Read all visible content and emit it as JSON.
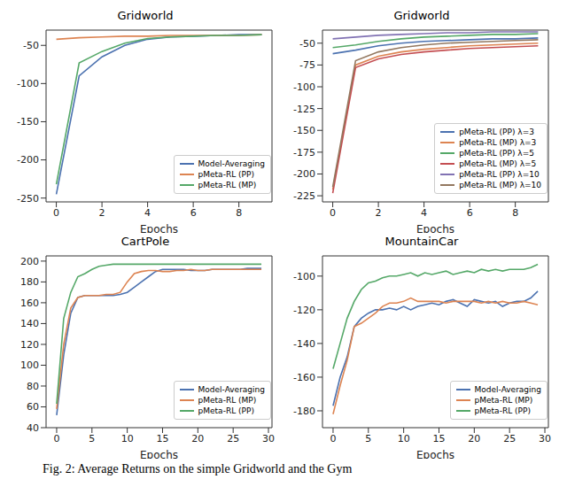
{
  "caption": "Fig. 2: Average Returns on the simple Gridworld and the Gym",
  "chart_data": [
    {
      "type": "line",
      "title": "Gridworld",
      "x_label": "Epochs",
      "x": [
        0,
        1,
        2,
        3,
        4,
        5,
        6,
        7,
        8,
        9
      ],
      "xlim": [
        -0.45,
        9.45
      ],
      "xticks": [
        0,
        2,
        4,
        6,
        8
      ],
      "ylim": [
        -255,
        -30
      ],
      "yticks": [
        -250,
        -200,
        -150,
        -100,
        -50
      ],
      "grid": false,
      "legend": "lower right",
      "series": [
        {
          "name": "Model-Averaging",
          "color": "#4c72b0",
          "values": [
            -245,
            -90,
            -65,
            -50,
            -42,
            -39,
            -38,
            -37,
            -36,
            -36
          ]
        },
        {
          "name": "pMeta-RL (PP)",
          "color": "#dd8452",
          "values": [
            -42,
            -40,
            -39,
            -38,
            -38,
            -37,
            -37,
            -37,
            -37,
            -36
          ]
        },
        {
          "name": "pMeta-RL (MP)",
          "color": "#55a868",
          "values": [
            -232,
            -73,
            -58,
            -47,
            -41,
            -39,
            -38,
            -37,
            -37,
            -36
          ]
        }
      ]
    },
    {
      "type": "line",
      "title": "Gridworld",
      "x_label": "Epochs",
      "x": [
        0,
        1,
        2,
        3,
        4,
        5,
        6,
        7,
        8,
        9
      ],
      "xlim": [
        -0.45,
        9.45
      ],
      "xticks": [
        0,
        2,
        4,
        6,
        8
      ],
      "ylim": [
        -232,
        -35
      ],
      "yticks": [
        -225,
        -200,
        -175,
        -150,
        -125,
        -100,
        -75,
        -50
      ],
      "grid": false,
      "legend": "lower right",
      "series": [
        {
          "name": "pMeta-RL (PP) λ=3",
          "color": "#4c72b0",
          "values": [
            -62,
            -58,
            -53,
            -50,
            -48,
            -47,
            -46,
            -45,
            -45,
            -44
          ]
        },
        {
          "name": "pMeta-RL (MP) λ=3",
          "color": "#dd8452",
          "values": [
            -218,
            -75,
            -65,
            -60,
            -57,
            -55,
            -53,
            -52,
            -51,
            -50
          ]
        },
        {
          "name": "pMeta-RL (PP) λ=5",
          "color": "#55a868",
          "values": [
            -55,
            -52,
            -48,
            -45,
            -43,
            -42,
            -41,
            -40,
            -40,
            -39
          ]
        },
        {
          "name": "pMeta-RL (MP) λ=5",
          "color": "#c44e52",
          "values": [
            -222,
            -78,
            -68,
            -63,
            -60,
            -58,
            -56,
            -55,
            -54,
            -53
          ]
        },
        {
          "name": "pMeta-RL (PP) λ=10",
          "color": "#8172b3",
          "values": [
            -45,
            -43,
            -41,
            -40,
            -39,
            -38,
            -38,
            -37,
            -37,
            -37
          ]
        },
        {
          "name": "pMeta-RL (MP) λ=10",
          "color": "#937860",
          "values": [
            -215,
            -70,
            -60,
            -55,
            -52,
            -50,
            -49,
            -48,
            -47,
            -46
          ]
        }
      ]
    },
    {
      "type": "line",
      "title": "CartPole",
      "x_label": "Epochs",
      "x": [
        0,
        1,
        2,
        3,
        4,
        5,
        6,
        7,
        8,
        9,
        10,
        11,
        12,
        13,
        14,
        15,
        16,
        17,
        18,
        19,
        20,
        21,
        22,
        23,
        24,
        25,
        26,
        27,
        28,
        29
      ],
      "xlim": [
        -1.5,
        30.5
      ],
      "xticks": [
        0,
        5,
        10,
        15,
        20,
        25,
        30
      ],
      "ylim": [
        40,
        205
      ],
      "yticks": [
        40,
        60,
        80,
        100,
        120,
        140,
        160,
        180,
        200
      ],
      "grid": false,
      "legend": "lower right",
      "series": [
        {
          "name": "Model-Averaging",
          "color": "#4c72b0",
          "values": [
            52,
            110,
            150,
            165,
            167,
            167,
            167,
            167,
            167,
            168,
            170,
            175,
            180,
            185,
            190,
            192,
            192,
            192,
            192,
            191,
            191,
            191,
            192,
            192,
            192,
            192,
            192,
            193,
            193,
            193
          ]
        },
        {
          "name": "pMeta-RL (MP)",
          "color": "#dd8452",
          "values": [
            58,
            120,
            155,
            165,
            167,
            167,
            167,
            168,
            168,
            170,
            180,
            188,
            190,
            191,
            191,
            190,
            190,
            191,
            191,
            192,
            191,
            191,
            192,
            192,
            192,
            192,
            192,
            192,
            192,
            192
          ]
        },
        {
          "name": "pMeta-RL (PP)",
          "color": "#55a868",
          "values": [
            63,
            145,
            170,
            185,
            188,
            192,
            195,
            196,
            197,
            197,
            197,
            197,
            197,
            197,
            197,
            197,
            197,
            197,
            197,
            197,
            197,
            197,
            197,
            197,
            197,
            197,
            197,
            197,
            197,
            197
          ]
        }
      ]
    },
    {
      "type": "line",
      "title": "MountainCar",
      "x_label": "Epochs",
      "x": [
        0,
        1,
        2,
        3,
        4,
        5,
        6,
        7,
        8,
        9,
        10,
        11,
        12,
        13,
        14,
        15,
        16,
        17,
        18,
        19,
        20,
        21,
        22,
        23,
        24,
        25,
        26,
        27,
        28,
        29
      ],
      "xlim": [
        -1.5,
        30.5
      ],
      "xticks": [
        0,
        5,
        10,
        15,
        20,
        25,
        30
      ],
      "ylim": [
        -190,
        -88
      ],
      "yticks": [
        -180,
        -160,
        -140,
        -120,
        -100
      ],
      "grid": false,
      "legend": "lower right",
      "series": [
        {
          "name": "Model-Averaging",
          "color": "#4c72b0",
          "values": [
            -177,
            -160,
            -148,
            -130,
            -125,
            -122,
            -120,
            -120,
            -119,
            -120,
            -118,
            -120,
            -118,
            -117,
            -116,
            -117,
            -115,
            -114,
            -116,
            -118,
            -114,
            -115,
            -116,
            -115,
            -118,
            -116,
            -115,
            -115,
            -113,
            -109
          ]
        },
        {
          "name": "pMeta-RL (MP)",
          "color": "#dd8452",
          "values": [
            -182,
            -165,
            -150,
            -130,
            -128,
            -125,
            -122,
            -118,
            -116,
            -116,
            -115,
            -113,
            -115,
            -115,
            -115,
            -115,
            -116,
            -115,
            -115,
            -115,
            -115,
            -116,
            -115,
            -116,
            -115,
            -116,
            -116,
            -115,
            -116,
            -117
          ]
        },
        {
          "name": "pMeta-RL (PP)",
          "color": "#55a868",
          "values": [
            -155,
            -140,
            -125,
            -115,
            -108,
            -104,
            -103,
            -101,
            -100,
            -100,
            -99,
            -98,
            -100,
            -98,
            -99,
            -98,
            -97,
            -99,
            -98,
            -97,
            -98,
            -96,
            -97,
            -96,
            -97,
            -96,
            -96,
            -96,
            -95,
            -93
          ]
        }
      ]
    }
  ]
}
